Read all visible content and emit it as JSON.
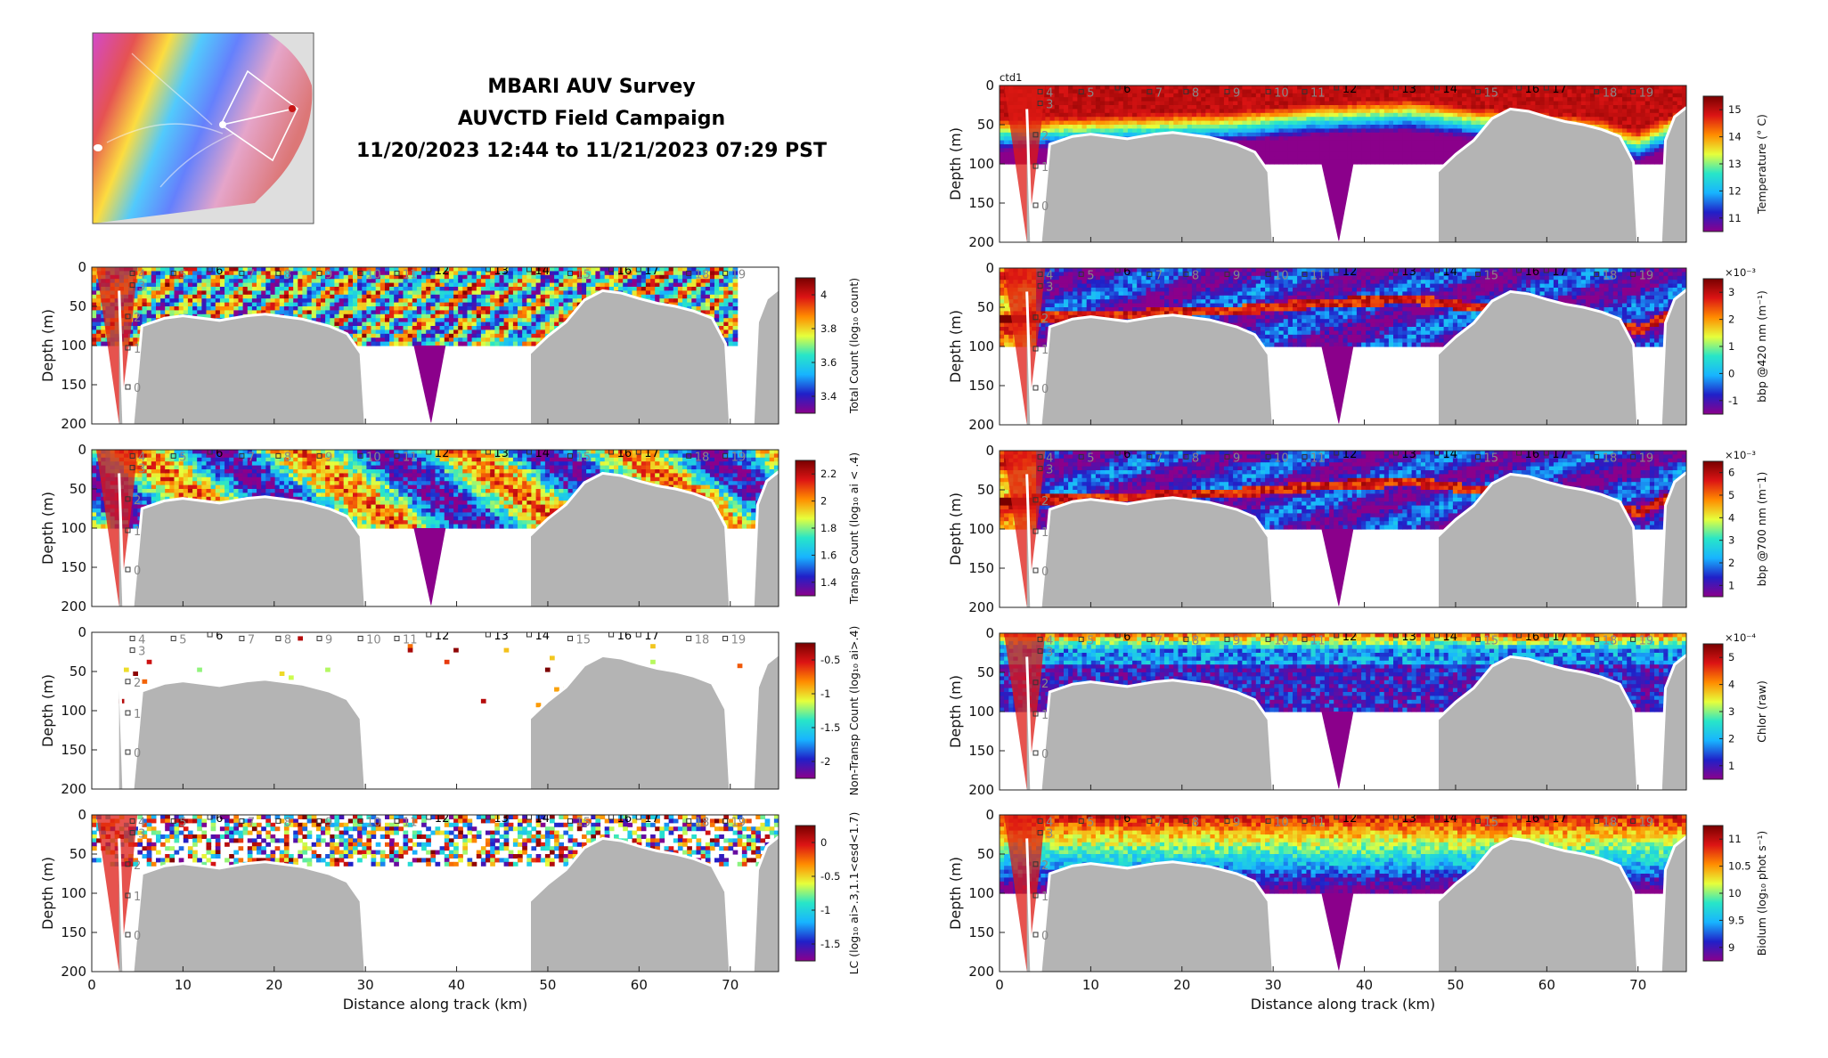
{
  "title": {
    "line1": "MBARI AUV Survey",
    "line2": "AUVCTD Field Campaign",
    "line3": "11/20/2023 12:44 to 11/21/2023 07:29 PST"
  },
  "colors": {
    "terrain": "#b4b4b4",
    "colormap": [
      "#8b008b",
      "#2020c8",
      "#18b4ff",
      "#28e6c8",
      "#e6ff3c",
      "#ff8c00",
      "#dc1414",
      "#780000"
    ]
  },
  "chart_data": [
    {
      "type": "heatmap",
      "panel": "left-1",
      "variable": "Total Count",
      "ylabel": "Depth (m)",
      "xlabel": "",
      "xlim": [
        0,
        75.3
      ],
      "ylim": [
        200,
        0
      ],
      "yticks": [
        "0",
        "50",
        "100",
        "150",
        "200"
      ],
      "xticks": [
        "0",
        "10",
        "20",
        "30",
        "40",
        "50",
        "60",
        "70"
      ],
      "show_xtick_labels": false,
      "colorbar": {
        "label": "Total Count (log₁₀ count)",
        "ticks": [
          "3.4",
          "3.6",
          "3.8",
          "4"
        ],
        "exponent": ""
      },
      "pattern": "survey",
      "data_bottom_m": 100
    },
    {
      "type": "heatmap",
      "panel": "left-2",
      "variable": "Transp Count",
      "ylabel": "Depth (m)",
      "xlabel": "",
      "xlim": [
        0,
        75.3
      ],
      "ylim": [
        200,
        0
      ],
      "yticks": [
        "0",
        "50",
        "100",
        "150",
        "200"
      ],
      "xticks": [
        "0",
        "10",
        "20",
        "30",
        "40",
        "50",
        "60",
        "70"
      ],
      "show_xtick_labels": false,
      "colorbar": {
        "label": "Transp Count (log₁₀ ai < .4)",
        "ticks": [
          "1.4",
          "1.6",
          "1.8",
          "2",
          "2.2"
        ],
        "exponent": ""
      },
      "pattern": "transp",
      "data_bottom_m": 100
    },
    {
      "type": "heatmap",
      "panel": "left-3",
      "variable": "Non-Transp Count",
      "ylabel": "Depth (m)",
      "xlabel": "",
      "xlim": [
        0,
        75.3
      ],
      "ylim": [
        200,
        0
      ],
      "yticks": [
        "0",
        "50",
        "100",
        "150",
        "200"
      ],
      "xticks": [
        "0",
        "10",
        "20",
        "30",
        "40",
        "50",
        "60",
        "70"
      ],
      "show_xtick_labels": false,
      "colorbar": {
        "label": "Non-Transp Count (log₁₀ ai>.4)",
        "ticks": [
          "-2",
          "-1.5",
          "-1",
          "-0.5"
        ],
        "exponent": ""
      },
      "pattern": "sparse",
      "data_bottom_m": 100
    },
    {
      "type": "heatmap",
      "panel": "left-4",
      "variable": "LC",
      "ylabel": "Depth (m)",
      "xlabel": "Distance along track (km)",
      "xlim": [
        0,
        75.3
      ],
      "ylim": [
        200,
        0
      ],
      "yticks": [
        "0",
        "50",
        "100",
        "150",
        "200"
      ],
      "xticks": [
        "0",
        "10",
        "20",
        "30",
        "40",
        "50",
        "60",
        "70"
      ],
      "show_xtick_labels": true,
      "colorbar": {
        "label": "LC (log₁₀ ai>.3,1.1<esd<1.7)",
        "ticks": [
          "-1.5",
          "-1",
          "-0.5",
          "0"
        ],
        "exponent": ""
      },
      "pattern": "speckle",
      "data_bottom_m": 100
    },
    {
      "type": "heatmap",
      "panel": "right-1",
      "variable": "Temperature",
      "ylabel": "Depth (m)",
      "xlabel": "",
      "corner_label": "ctd1",
      "xlim": [
        0,
        75.3
      ],
      "ylim": [
        200,
        0
      ],
      "yticks": [
        "0",
        "50",
        "100",
        "150",
        "200"
      ],
      "xticks": [
        "0",
        "10",
        "20",
        "30",
        "40",
        "50",
        "60",
        "70"
      ],
      "show_xtick_labels": false,
      "colorbar": {
        "label": "Temperature (° C)",
        "ticks": [
          "11",
          "12",
          "13",
          "14",
          "15"
        ],
        "exponent": ""
      },
      "pattern": "temp",
      "data_bottom_m": 100
    },
    {
      "type": "heatmap",
      "panel": "right-2",
      "variable": "bbp @420 nm",
      "ylabel": "Depth (m)",
      "xlabel": "",
      "xlim": [
        0,
        75.3
      ],
      "ylim": [
        200,
        0
      ],
      "yticks": [
        "0",
        "50",
        "100",
        "150",
        "200"
      ],
      "xticks": [
        "0",
        "10",
        "20",
        "30",
        "40",
        "50",
        "60",
        "70"
      ],
      "show_xtick_labels": false,
      "colorbar": {
        "label": "bbp @420 nm (m⁻¹)",
        "ticks": [
          "-1",
          "0",
          "1",
          "2",
          "3"
        ],
        "exponent": "×10⁻³"
      },
      "pattern": "bbp",
      "data_bottom_m": 100
    },
    {
      "type": "heatmap",
      "panel": "right-3",
      "variable": "bbp @700 nm",
      "ylabel": "Depth (m)",
      "xlabel": "",
      "xlim": [
        0,
        75.3
      ],
      "ylim": [
        200,
        0
      ],
      "yticks": [
        "0",
        "50",
        "100",
        "150",
        "200"
      ],
      "xticks": [
        "0",
        "10",
        "20",
        "30",
        "40",
        "50",
        "60",
        "70"
      ],
      "show_xtick_labels": false,
      "colorbar": {
        "label": "bbp @700 nm (m⁻1)",
        "ticks": [
          "1",
          "2",
          "3",
          "4",
          "5",
          "6"
        ],
        "exponent": "×10⁻³"
      },
      "pattern": "bbp",
      "data_bottom_m": 100
    },
    {
      "type": "heatmap",
      "panel": "right-4",
      "variable": "Chlor",
      "ylabel": "Depth (m)",
      "xlabel": "",
      "xlim": [
        0,
        75.3
      ],
      "ylim": [
        200,
        0
      ],
      "yticks": [
        "0",
        "50",
        "100",
        "150",
        "200"
      ],
      "xticks": [
        "0",
        "10",
        "20",
        "30",
        "40",
        "50",
        "60",
        "70"
      ],
      "show_xtick_labels": false,
      "colorbar": {
        "label": "Chlor (raw)",
        "ticks": [
          "1",
          "2",
          "3",
          "4",
          "5"
        ],
        "exponent": "×10⁻⁴"
      },
      "pattern": "chl",
      "data_bottom_m": 100
    },
    {
      "type": "heatmap",
      "panel": "right-5",
      "variable": "Biolum",
      "ylabel": "Depth (m)",
      "xlabel": "Distance along track (km)",
      "xlim": [
        0,
        75.3
      ],
      "ylim": [
        200,
        0
      ],
      "yticks": [
        "0",
        "50",
        "100",
        "150",
        "200"
      ],
      "xticks": [
        "0",
        "10",
        "20",
        "30",
        "40",
        "50",
        "60",
        "70"
      ],
      "show_xtick_labels": true,
      "colorbar": {
        "label": "Biolum (log₁₀ phot s⁻¹)",
        "ticks": [
          "9",
          "9.5",
          "10",
          "10.5",
          "11"
        ],
        "exponent": ""
      },
      "pattern": "biolum",
      "data_bottom_m": 100
    }
  ],
  "stations": [
    {
      "label": "4",
      "km": 4.5,
      "depth_m": 5
    },
    {
      "label": "3",
      "km": 4.5,
      "depth_m": 20
    },
    {
      "label": "5",
      "km": 9.0,
      "depth_m": 5
    },
    {
      "label": "6",
      "km": 13.0,
      "depth_m": 0
    },
    {
      "label": "7",
      "km": 16.5,
      "depth_m": 5
    },
    {
      "label": "8",
      "km": 20.5,
      "depth_m": 5
    },
    {
      "label": "9",
      "km": 25.0,
      "depth_m": 5
    },
    {
      "label": "10",
      "km": 29.5,
      "depth_m": 5
    },
    {
      "label": "11",
      "km": 33.5,
      "depth_m": 5
    },
    {
      "label": "12",
      "km": 37.0,
      "depth_m": 0
    },
    {
      "label": "13",
      "km": 43.5,
      "depth_m": 0
    },
    {
      "label": "14",
      "km": 48.0,
      "depth_m": 0
    },
    {
      "label": "15",
      "km": 52.5,
      "depth_m": 5
    },
    {
      "label": "16",
      "km": 57.0,
      "depth_m": 0
    },
    {
      "label": "17",
      "km": 60.0,
      "depth_m": 0
    },
    {
      "label": "18",
      "km": 65.5,
      "depth_m": 5
    },
    {
      "label": "19",
      "km": 69.5,
      "depth_m": 5
    },
    {
      "label": "2",
      "km": 4.0,
      "depth_m": 60
    },
    {
      "label": "1",
      "km": 4.0,
      "depth_m": 100
    },
    {
      "label": "0",
      "km": 4.0,
      "depth_m": 150
    }
  ]
}
